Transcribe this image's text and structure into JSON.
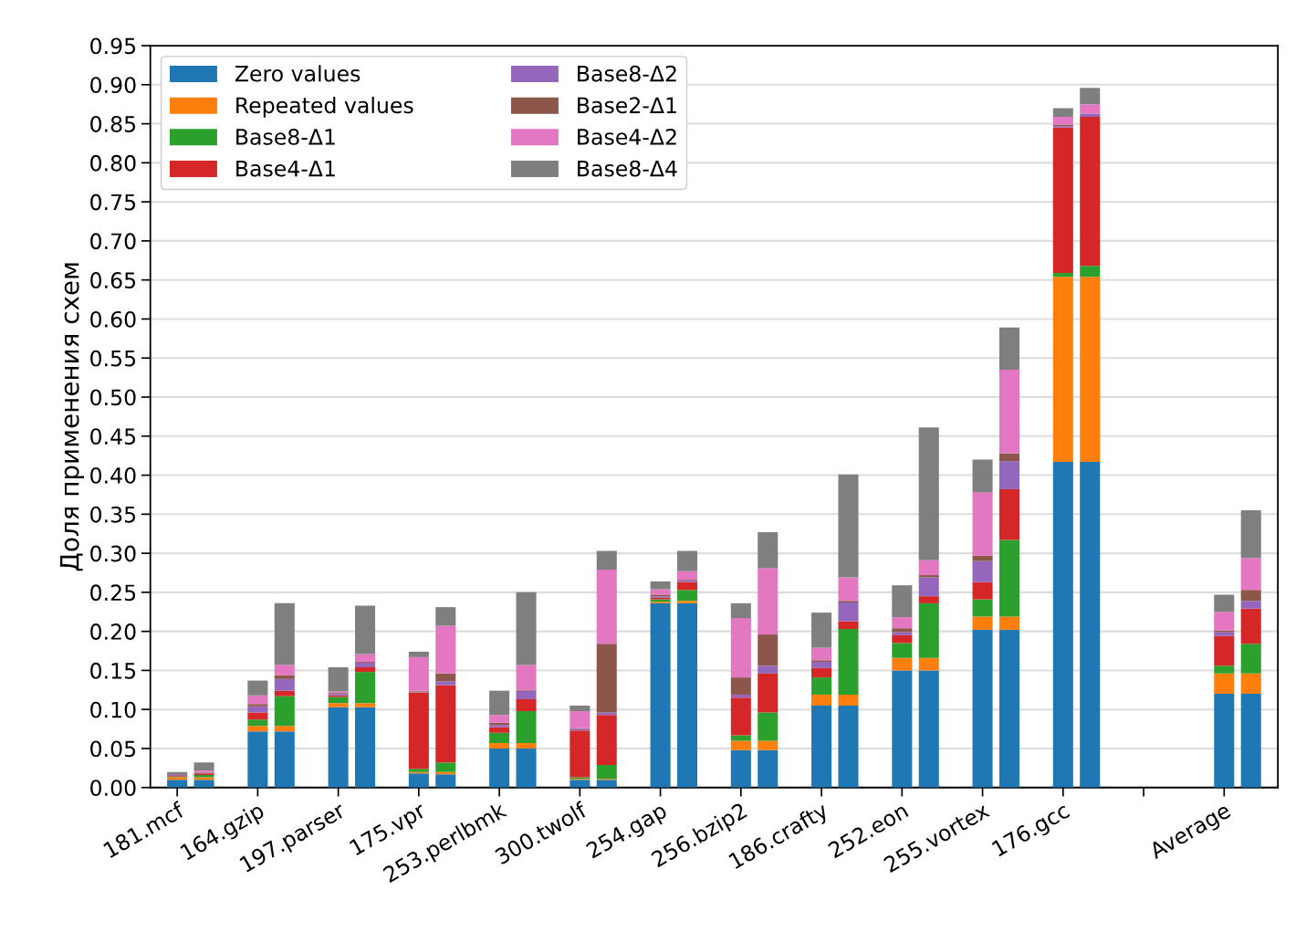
{
  "chart_data": {
    "type": "bar",
    "stacked": true,
    "ylabel": "Доля применения схем",
    "categories": [
      "181.mcf",
      null,
      null,
      "164.gzip",
      null,
      null,
      "197.parser",
      null,
      null,
      "175.vpr",
      null,
      null,
      "253.perlbmk",
      null,
      null,
      "300.twolf",
      null,
      null,
      "254.gap",
      null,
      null,
      "256.bzip2",
      null,
      null,
      "186.crafty",
      null,
      null,
      "252.eon",
      null,
      null,
      "255.vortex",
      null,
      null,
      "176.gcc",
      null,
      null,
      null,
      null,
      null,
      "Average",
      null
    ],
    "ylim": [
      0,
      0.95
    ],
    "yticks": [
      {
        "value": 0,
        "label": "0.00"
      },
      {
        "value": 0.05,
        "label": "0.05"
      },
      {
        "value": 0.1,
        "label": "0.10"
      },
      {
        "value": 0.15,
        "label": "0.15"
      },
      {
        "value": 0.2,
        "label": "0.20"
      },
      {
        "value": 0.25,
        "label": "0.25"
      },
      {
        "value": 0.3,
        "label": "0.30"
      },
      {
        "value": 0.35,
        "label": "0.35"
      },
      {
        "value": 0.4,
        "label": "0.40"
      },
      {
        "value": 0.45,
        "label": "0.45"
      },
      {
        "value": 0.5,
        "label": "0.50"
      },
      {
        "value": 0.55,
        "label": "0.55"
      },
      {
        "value": 0.6,
        "label": "0.60"
      },
      {
        "value": 0.65,
        "label": "0.65"
      },
      {
        "value": 0.7,
        "label": "0.70"
      },
      {
        "value": 0.75,
        "label": "0.75"
      },
      {
        "value": 0.8,
        "label": "0.80"
      },
      {
        "value": 0.85,
        "label": "0.85"
      },
      {
        "value": 0.9,
        "label": "0.90"
      },
      {
        "value": 0.95,
        "label": "0.95"
      }
    ],
    "grid": "y",
    "legend": "top left",
    "series": [
      {
        "name": "Zero values",
        "color": "#1f77b4",
        "values": [
          0.01,
          0.01,
          null,
          0.072,
          0.072,
          null,
          0.103,
          0.103,
          null,
          0.018,
          0.017,
          null,
          0.05,
          0.05,
          null,
          0.01,
          0.01,
          null,
          0.236,
          0.236,
          null,
          0.048,
          0.048,
          null,
          0.105,
          0.105,
          null,
          0.15,
          0.15,
          null,
          0.202,
          0.202,
          null,
          0.417,
          0.417,
          null,
          null,
          null,
          null,
          0.12,
          0.12
        ]
      },
      {
        "name": "Repeated values",
        "color": "#ff7f0e",
        "values": [
          0.003,
          0.003,
          null,
          0.007,
          0.007,
          null,
          0.005,
          0.005,
          null,
          0.002,
          0.003,
          null,
          0.007,
          0.007,
          null,
          0.001,
          0.001,
          null,
          0.002,
          0.003,
          null,
          0.012,
          0.012,
          null,
          0.014,
          0.014,
          null,
          0.016,
          0.016,
          null,
          0.017,
          0.017,
          null,
          0.237,
          0.237,
          null,
          null,
          null,
          null,
          0.026,
          0.026
        ]
      },
      {
        "name": "Base8-Δ1",
        "color": "#2ca02c",
        "values": [
          0.001,
          0.003,
          null,
          0.008,
          0.038,
          null,
          0.008,
          0.04,
          null,
          0.004,
          0.012,
          null,
          0.013,
          0.041,
          null,
          0.002,
          0.018,
          null,
          0.003,
          0.014,
          null,
          0.007,
          0.036,
          null,
          0.022,
          0.084,
          null,
          0.019,
          0.07,
          null,
          0.022,
          0.098,
          null,
          0.005,
          0.014,
          null,
          null,
          null,
          null,
          0.01,
          0.038
        ]
      },
      {
        "name": "Base4-Δ1",
        "color": "#d62728",
        "values": [
          0.001,
          0.002,
          null,
          0.009,
          0.007,
          null,
          0.002,
          0.006,
          null,
          0.098,
          0.099,
          null,
          0.007,
          0.015,
          null,
          0.06,
          0.064,
          null,
          0.002,
          0.01,
          null,
          0.048,
          0.05,
          null,
          0.012,
          0.01,
          null,
          0.01,
          0.009,
          null,
          0.022,
          0.065,
          null,
          0.186,
          0.191,
          null,
          null,
          null,
          null,
          0.038,
          0.045
        ]
      },
      {
        "name": "Base8-Δ2",
        "color": "#9467bd",
        "values": [
          0.001,
          0.001,
          null,
          0.008,
          0.015,
          null,
          0.002,
          0.006,
          null,
          0.001,
          0.005,
          null,
          0.003,
          0.011,
          null,
          0.002,
          0.003,
          null,
          0.002,
          0.002,
          null,
          0.004,
          0.01,
          null,
          0.008,
          0.024,
          null,
          0.004,
          0.024,
          null,
          0.027,
          0.036,
          null,
          0.002,
          0.004,
          null,
          null,
          null,
          null,
          0.005,
          0.01
        ]
      },
      {
        "name": "Base2-Δ1",
        "color": "#8c564b",
        "values": [
          0.001,
          0.001,
          null,
          0.003,
          0.005,
          null,
          0.001,
          0.001,
          null,
          0.001,
          0.01,
          null,
          0.003,
          0.001,
          null,
          0.001,
          0.088,
          null,
          0.002,
          0.001,
          null,
          0.022,
          0.04,
          null,
          0.002,
          0.002,
          null,
          0.005,
          0.003,
          null,
          0.007,
          0.01,
          null,
          0.002,
          null,
          null,
          null,
          null,
          null,
          0.002,
          0.014
        ]
      },
      {
        "name": "Base4-Δ2",
        "color": "#e377c2",
        "values": [
          0.0,
          0.002,
          null,
          0.011,
          0.013,
          null,
          0.002,
          0.01,
          null,
          0.043,
          0.061,
          null,
          0.01,
          0.032,
          null,
          0.022,
          0.095,
          null,
          0.007,
          0.011,
          null,
          0.076,
          0.085,
          null,
          0.016,
          0.03,
          null,
          0.014,
          0.019,
          null,
          0.081,
          0.107,
          null,
          0.01,
          0.012,
          null,
          null,
          null,
          null,
          0.024,
          0.041
        ]
      },
      {
        "name": "Base8-Δ4",
        "color": "#7f7f7f",
        "values": [
          0.003,
          0.01,
          null,
          0.019,
          0.079,
          null,
          0.031,
          0.062,
          null,
          0.007,
          0.024,
          null,
          0.031,
          0.093,
          null,
          0.007,
          0.024,
          null,
          0.01,
          0.026,
          null,
          0.019,
          0.046,
          null,
          0.045,
          0.132,
          null,
          0.041,
          0.17,
          null,
          0.042,
          0.054,
          null,
          0.011,
          0.021,
          null,
          null,
          null,
          null,
          0.022,
          0.061
        ]
      }
    ]
  }
}
